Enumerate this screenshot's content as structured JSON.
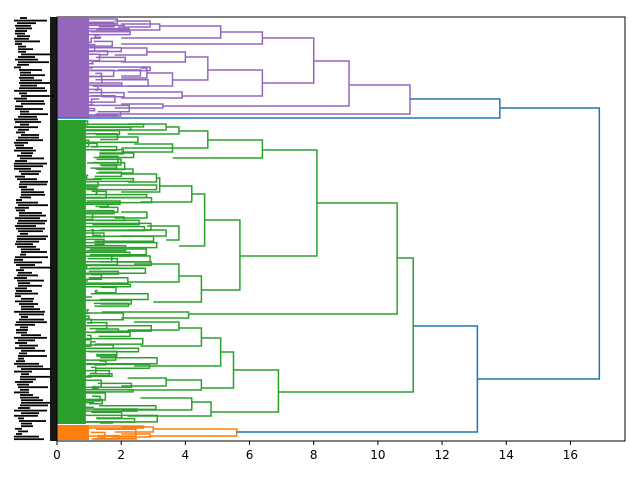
{
  "chart_data": {
    "type": "dendrogram",
    "orientation": "horizontal",
    "title": "",
    "xlabel": "",
    "ylabel": "",
    "xlim": [
      0,
      17.7
    ],
    "x_ticks": [
      0,
      2,
      4,
      6,
      8,
      10,
      12,
      14,
      16
    ],
    "x_tick_labels": [
      "0",
      "2",
      "4",
      "6",
      "8",
      "10",
      "12",
      "14",
      "16"
    ],
    "leaf_labels_note": "Leaf labels are dense and overlapping; individual labels are illegible",
    "clusters": [
      {
        "name": "purple cluster",
        "color": "#9467bd",
        "root_height": 11.0
      },
      {
        "name": "green cluster",
        "color": "#2ca02c",
        "root_height": 11.1
      },
      {
        "name": "orange cluster",
        "color": "#ff7f0e",
        "root_height": 5.6
      }
    ],
    "top_merges": [
      {
        "left": "purple cluster",
        "right": "green + orange",
        "height": 16.9
      },
      {
        "left": "purple cluster",
        "right": "purple singleton",
        "height": 13.8
      },
      {
        "left": "green cluster",
        "right": "orange cluster",
        "height": 13.1
      }
    ],
    "link_color_above_threshold": "#1f77b4"
  }
}
